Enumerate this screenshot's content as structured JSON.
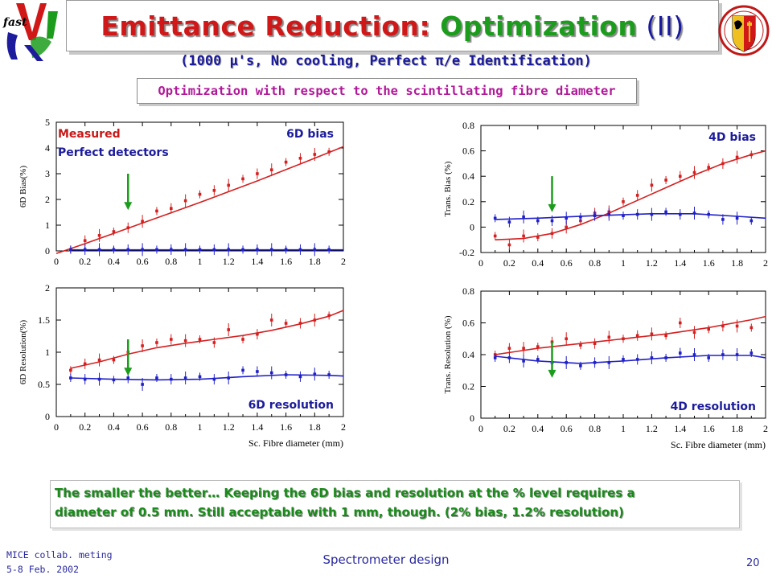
{
  "slide": {
    "title_part1": "Emittance Reduction: ",
    "title_part2": "Optimization",
    "title_part3": " (II)",
    "subtitle": "(1000 µ's, No cooling, Perfect π/e Identification)",
    "optimization_note": "Optimization with respect to the scintillating fibre diameter",
    "conclusion_line1": "The smaller the better… Keeping the 6D bias and resolution at the % level requires a",
    "conclusion_line2": "diameter of 0.5 mm. Still acceptable with 1 mm, though. (2% bias, 1.2% resolution)",
    "footer_left_line1": "MICE collab. meting",
    "footer_left_line2": "5-8 Feb. 2002",
    "footer_center": "Spectrometer design",
    "page_number": "20",
    "logo_left_text": "fast",
    "colors": {
      "title_red": "#d01818",
      "title_green": "#1c9c1c",
      "text_blue": "#1c1c9c",
      "magenta": "#b01898",
      "measured": "#d42020",
      "perfect": "#2020c8",
      "arrow": "#1c9c1c"
    }
  },
  "chart_data": [
    {
      "type": "scatter",
      "id": "bias6d",
      "panel_label": "6D bias",
      "xlabel": "",
      "ylabel": "6D Bias(%)",
      "xlim": [
        0,
        2
      ],
      "ylim": [
        0,
        5
      ],
      "xticks": [
        "0",
        "0.2",
        "0.4",
        "0.6",
        "0.8",
        "1",
        "1.2",
        "1.4",
        "1.6",
        "1.8",
        "2"
      ],
      "yticks": [
        "0",
        "1",
        "2",
        "3",
        "4",
        "5"
      ],
      "legend": [
        "Measured",
        "Perfect detectors"
      ],
      "arrow_x": 0.5,
      "series": [
        {
          "name": "Measured",
          "color": "#d42020",
          "x": [
            0.1,
            0.2,
            0.3,
            0.4,
            0.5,
            0.6,
            0.7,
            0.8,
            0.9,
            1.0,
            1.1,
            1.2,
            1.3,
            1.4,
            1.5,
            1.6,
            1.7,
            1.8,
            1.9
          ],
          "y": [
            0.05,
            0.4,
            0.6,
            0.75,
            0.9,
            1.15,
            1.55,
            1.65,
            1.95,
            2.2,
            2.35,
            2.55,
            2.8,
            3.0,
            3.15,
            3.45,
            3.6,
            3.75,
            3.85
          ],
          "fit": [
            [
              0,
              -0.1
            ],
            [
              0.2,
              0.28
            ],
            [
              0.4,
              0.68
            ],
            [
              0.6,
              1.08
            ],
            [
              0.8,
              1.48
            ],
            [
              1.0,
              1.88
            ],
            [
              1.2,
              2.3
            ],
            [
              1.4,
              2.72
            ],
            [
              1.6,
              3.16
            ],
            [
              1.8,
              3.6
            ],
            [
              2.0,
              4.05
            ]
          ]
        },
        {
          "name": "Perfect detectors",
          "color": "#2020c8",
          "x": [
            0.1,
            0.2,
            0.3,
            0.4,
            0.5,
            0.6,
            0.7,
            0.8,
            0.9,
            1.0,
            1.1,
            1.2,
            1.3,
            1.4,
            1.5,
            1.6,
            1.7,
            1.8,
            1.9
          ],
          "y": [
            0.05,
            0.05,
            0.05,
            0.05,
            0.05,
            0.05,
            0.05,
            0.05,
            0.05,
            0.05,
            0.05,
            0.05,
            0.05,
            0.05,
            0.05,
            0.05,
            0.05,
            0.05,
            0.05
          ],
          "fit": [
            [
              0.1,
              0.04
            ],
            [
              2.0,
              0.04
            ]
          ]
        }
      ]
    },
    {
      "type": "scatter",
      "id": "bias4d",
      "panel_label": "4D bias",
      "xlabel": "",
      "ylabel": "Trans. Bias (%)",
      "xlim": [
        0,
        2
      ],
      "ylim": [
        -0.2,
        0.8
      ],
      "xticks": [
        "0",
        "0.2",
        "0.4",
        "0.6",
        "0.8",
        "1",
        "1.2",
        "1.4",
        "1.6",
        "1.8",
        "2"
      ],
      "yticks": [
        "-0.2",
        "0",
        "0.2",
        "0.4",
        "0.6",
        "0.8"
      ],
      "arrow_x": 0.5,
      "series": [
        {
          "name": "Measured",
          "color": "#d42020",
          "x": [
            0.1,
            0.2,
            0.3,
            0.4,
            0.5,
            0.6,
            0.7,
            0.8,
            0.9,
            1.0,
            1.1,
            1.2,
            1.3,
            1.4,
            1.5,
            1.6,
            1.7,
            1.8,
            1.9
          ],
          "y": [
            -0.07,
            -0.14,
            -0.07,
            -0.08,
            -0.05,
            0.0,
            0.05,
            0.11,
            0.12,
            0.2,
            0.25,
            0.33,
            0.37,
            0.4,
            0.43,
            0.47,
            0.5,
            0.55,
            0.57
          ],
          "fit": [
            [
              0.1,
              -0.1
            ],
            [
              0.3,
              -0.09
            ],
            [
              0.5,
              -0.05
            ],
            [
              0.7,
              0.02
            ],
            [
              0.9,
              0.11
            ],
            [
              1.1,
              0.21
            ],
            [
              1.3,
              0.31
            ],
            [
              1.5,
              0.41
            ],
            [
              1.7,
              0.5
            ],
            [
              1.9,
              0.57
            ],
            [
              2.0,
              0.6
            ]
          ]
        },
        {
          "name": "Perfect detectors",
          "color": "#2020c8",
          "x": [
            0.1,
            0.2,
            0.3,
            0.4,
            0.5,
            0.6,
            0.7,
            0.8,
            0.9,
            1.0,
            1.1,
            1.2,
            1.3,
            1.4,
            1.5,
            1.6,
            1.7,
            1.8,
            1.9
          ],
          "y": [
            0.07,
            0.04,
            0.08,
            0.05,
            0.05,
            0.07,
            0.08,
            0.09,
            0.1,
            0.09,
            0.1,
            0.1,
            0.12,
            0.1,
            0.11,
            0.1,
            0.06,
            0.07,
            0.05
          ],
          "fit": [
            [
              0.1,
              0.06
            ],
            [
              0.4,
              0.07
            ],
            [
              0.8,
              0.09
            ],
            [
              1.2,
              0.105
            ],
            [
              1.5,
              0.105
            ],
            [
              1.8,
              0.085
            ],
            [
              2.0,
              0.07
            ]
          ]
        }
      ]
    },
    {
      "type": "scatter",
      "id": "res6d",
      "panel_label": "6D resolution",
      "xlabel": "Sc. Fibre diameter (mm)",
      "ylabel": "6D Resolution(%)",
      "xlim": [
        0,
        2
      ],
      "ylim": [
        0,
        2
      ],
      "xticks": [
        "0",
        "0.2",
        "0.4",
        "0.6",
        "0.8",
        "1",
        "1.2",
        "1.4",
        "1.6",
        "1.8",
        "2"
      ],
      "yticks": [
        "0",
        "0.5",
        "1",
        "1.5",
        "2"
      ],
      "arrow_x": 0.5,
      "series": [
        {
          "name": "Measured",
          "color": "#d42020",
          "x": [
            0.1,
            0.2,
            0.3,
            0.4,
            0.5,
            0.6,
            0.7,
            0.8,
            0.9,
            1.0,
            1.1,
            1.2,
            1.3,
            1.4,
            1.5,
            1.6,
            1.7,
            1.8,
            1.9
          ],
          "y": [
            0.72,
            0.82,
            0.88,
            0.88,
            1.0,
            1.1,
            1.15,
            1.2,
            1.18,
            1.2,
            1.15,
            1.35,
            1.2,
            1.28,
            1.5,
            1.45,
            1.45,
            1.5,
            1.57
          ],
          "fit": [
            [
              0.1,
              0.75
            ],
            [
              0.3,
              0.85
            ],
            [
              0.5,
              0.97
            ],
            [
              0.7,
              1.07
            ],
            [
              0.9,
              1.14
            ],
            [
              1.1,
              1.2
            ],
            [
              1.3,
              1.26
            ],
            [
              1.5,
              1.34
            ],
            [
              1.7,
              1.44
            ],
            [
              1.9,
              1.56
            ],
            [
              2.0,
              1.65
            ]
          ]
        },
        {
          "name": "Perfect detectors",
          "color": "#2020c8",
          "x": [
            0.1,
            0.2,
            0.3,
            0.4,
            0.5,
            0.6,
            0.7,
            0.8,
            0.9,
            1.0,
            1.1,
            1.2,
            1.3,
            1.4,
            1.5,
            1.6,
            1.7,
            1.8,
            1.9
          ],
          "y": [
            0.6,
            0.58,
            0.58,
            0.57,
            0.6,
            0.5,
            0.6,
            0.58,
            0.6,
            0.62,
            0.58,
            0.6,
            0.72,
            0.7,
            0.68,
            0.65,
            0.62,
            0.66,
            0.65
          ],
          "fit": [
            [
              0.1,
              0.6
            ],
            [
              0.4,
              0.58
            ],
            [
              0.7,
              0.57
            ],
            [
              1.0,
              0.58
            ],
            [
              1.3,
              0.62
            ],
            [
              1.6,
              0.65
            ],
            [
              1.9,
              0.64
            ],
            [
              2.0,
              0.63
            ]
          ]
        }
      ]
    },
    {
      "type": "scatter",
      "id": "res4d",
      "panel_label": "4D resolution",
      "xlabel": "Sc. Fibre diameter (mm)",
      "ylabel": "Trans. Resolution (%)",
      "xlim": [
        0,
        2
      ],
      "ylim": [
        0,
        0.8
      ],
      "xticks": [
        "0",
        "0.2",
        "0.4",
        "0.6",
        "0.8",
        "1",
        "1.2",
        "1.4",
        "1.6",
        "1.8",
        "2"
      ],
      "yticks": [
        "0",
        "0.2",
        "0.4",
        "0.6",
        "0.8"
      ],
      "arrow_x": 0.5,
      "series": [
        {
          "name": "Measured",
          "color": "#d42020",
          "x": [
            0.1,
            0.2,
            0.3,
            0.4,
            0.5,
            0.6,
            0.7,
            0.8,
            0.9,
            1.0,
            1.1,
            1.2,
            1.3,
            1.4,
            1.5,
            1.6,
            1.7,
            1.8,
            1.9
          ],
          "y": [
            0.4,
            0.44,
            0.44,
            0.45,
            0.48,
            0.5,
            0.46,
            0.47,
            0.51,
            0.5,
            0.52,
            0.53,
            0.52,
            0.6,
            0.54,
            0.56,
            0.58,
            0.58,
            0.57
          ],
          "fit": [
            [
              0.1,
              0.4
            ],
            [
              0.4,
              0.44
            ],
            [
              0.7,
              0.47
            ],
            [
              1.0,
              0.5
            ],
            [
              1.3,
              0.53
            ],
            [
              1.6,
              0.57
            ],
            [
              1.9,
              0.62
            ],
            [
              2.0,
              0.64
            ]
          ]
        },
        {
          "name": "Perfect detectors",
          "color": "#2020c8",
          "x": [
            0.1,
            0.2,
            0.3,
            0.4,
            0.5,
            0.6,
            0.7,
            0.8,
            0.9,
            1.0,
            1.1,
            1.2,
            1.3,
            1.4,
            1.5,
            1.6,
            1.7,
            1.8,
            1.9
          ],
          "y": [
            0.38,
            0.38,
            0.36,
            0.37,
            0.35,
            0.35,
            0.33,
            0.35,
            0.35,
            0.37,
            0.37,
            0.38,
            0.38,
            0.41,
            0.4,
            0.38,
            0.4,
            0.4,
            0.41
          ],
          "fit": [
            [
              0.1,
              0.39
            ],
            [
              0.4,
              0.36
            ],
            [
              0.7,
              0.345
            ],
            [
              1.0,
              0.36
            ],
            [
              1.3,
              0.38
            ],
            [
              1.6,
              0.395
            ],
            [
              1.9,
              0.395
            ],
            [
              2.0,
              0.38
            ]
          ]
        }
      ]
    }
  ]
}
